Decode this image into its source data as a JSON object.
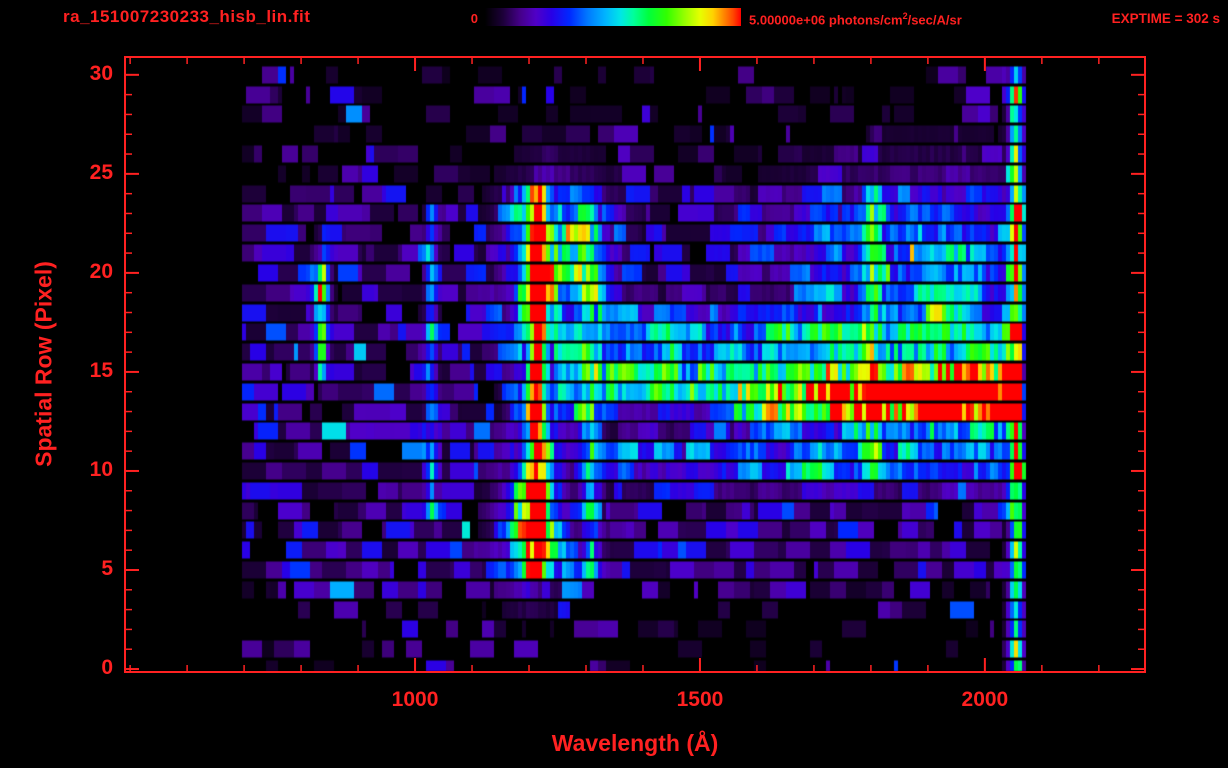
{
  "header": {
    "title": "ra_151007230233_hisb_lin.fit",
    "colorbar": {
      "min_label": "0",
      "max_prefix": "5.00000e+06 photons/cm",
      "max_sup": "2",
      "max_suffix": "/sec/A/sr"
    },
    "exptime": "EXPTIME = 302 s"
  },
  "colors": {
    "axis": "#ff2121",
    "text": "#ff2121",
    "background": "#000000"
  },
  "chart_data": {
    "type": "heatmap",
    "title": "ra_151007230233_hisb_lin.fit",
    "xlabel": "Wavelength (Å)",
    "ylabel": "Spatial Row (Pixel)",
    "x_range": [
      491,
      2281
    ],
    "y_range": [
      -0.15,
      30.9
    ],
    "x_ticks_major": [
      1000,
      1500,
      2000
    ],
    "x_tick_minor_step": 100,
    "y_ticks_major": [
      0,
      5,
      10,
      15,
      20,
      25,
      30
    ],
    "y_tick_minor_step": 1,
    "rows": 31,
    "data_lambda_range": [
      697,
      2068
    ],
    "exposure_time_s": 302,
    "colorbar": {
      "min": 0,
      "max": 5000000,
      "units": "photons/cm^2/sec/A/sr"
    },
    "colormap": [
      [
        0.0,
        "#000000"
      ],
      [
        0.07,
        "#1c0038"
      ],
      [
        0.14,
        "#46008c"
      ],
      [
        0.2,
        "#5000c8"
      ],
      [
        0.26,
        "#2800e6"
      ],
      [
        0.33,
        "#0028ff"
      ],
      [
        0.4,
        "#0078ff"
      ],
      [
        0.47,
        "#00b4ff"
      ],
      [
        0.53,
        "#00e6e6"
      ],
      [
        0.58,
        "#00ff9b"
      ],
      [
        0.64,
        "#00ff3c"
      ],
      [
        0.71,
        "#32ff00"
      ],
      [
        0.78,
        "#96ff00"
      ],
      [
        0.84,
        "#e6ff00"
      ],
      [
        0.89,
        "#ffd200"
      ],
      [
        0.93,
        "#ff8c00"
      ],
      [
        0.97,
        "#ff4600"
      ],
      [
        1.0,
        "#ff0000"
      ]
    ],
    "noise": {
      "seed": 20151007,
      "row_fill": [
        0.22,
        0.22,
        0.25,
        0.3,
        0.55,
        0.88,
        0.88,
        0.88,
        0.88,
        0.88,
        0.88,
        0.88,
        0.88,
        0.88,
        0.88,
        0.88,
        0.88,
        0.88,
        0.88,
        0.88,
        0.88,
        0.88,
        0.88,
        0.88,
        0.8,
        0.5,
        0.45,
        0.45,
        0.45,
        0.4,
        0.35
      ],
      "row_amp": [
        0.3,
        0.3,
        0.3,
        0.32,
        0.42,
        0.55,
        0.55,
        0.55,
        0.55,
        0.55,
        0.55,
        0.55,
        0.55,
        0.55,
        0.55,
        0.55,
        0.55,
        0.55,
        0.55,
        0.55,
        0.55,
        0.55,
        0.55,
        0.55,
        0.5,
        0.4,
        0.38,
        0.38,
        0.38,
        0.34,
        0.3
      ]
    },
    "features": [
      {
        "type": "vline",
        "lambda": 1212,
        "sigma": 10,
        "row_min": 5,
        "row_max": 24,
        "amp": 0.8
      },
      {
        "type": "vline",
        "lambda": 1212,
        "sigma": 30,
        "row_min": 5,
        "row_max": 24,
        "amp": 0.25
      },
      {
        "type": "vline",
        "lambda": 1026,
        "sigma": 6,
        "row_min": 8,
        "row_max": 23,
        "amp": 0.28
      },
      {
        "type": "vline",
        "lambda": 833,
        "sigma": 7,
        "row_min": 15,
        "row_max": 20,
        "amp": 0.55
      },
      {
        "type": "vline",
        "lambda": 1306,
        "sigma": 12,
        "row_min": 5,
        "row_max": 23,
        "amp": 0.3
      },
      {
        "type": "vline",
        "lambda": 1800,
        "sigma": 11,
        "row_min": 10,
        "row_max": 24,
        "amp": 0.28
      },
      {
        "type": "vline",
        "lambda": 2052,
        "sigma": 8,
        "row_min": 0,
        "row_max": 30,
        "amp": 0.6
      },
      {
        "type": "hband",
        "row": 14.4,
        "sigma": 0.8,
        "l_min": 1240,
        "l_max": 2062,
        "amp_start": 0.3,
        "amp_end": 0.8
      },
      {
        "type": "hband",
        "row": 13.2,
        "sigma": 0.7,
        "l_min": 1560,
        "l_max": 2062,
        "amp_start": 0.35,
        "amp_end": 1.0
      },
      {
        "type": "hband",
        "row": 16.6,
        "sigma": 1.0,
        "l_min": 1240,
        "l_max": 2060,
        "amp_start": 0.2,
        "amp_end": 0.4
      },
      {
        "type": "hband",
        "row": 10.6,
        "sigma": 0.9,
        "l_min": 1350,
        "l_max": 2060,
        "amp_start": 0.15,
        "amp_end": 0.3
      },
      {
        "type": "blob",
        "lambda": 1250,
        "sigma_l": 55,
        "row": 21,
        "sigma_r": 2.2,
        "amp": 0.4
      },
      {
        "type": "blob",
        "lambda": 1205,
        "sigma_l": 35,
        "row": 7,
        "sigma_r": 1.8,
        "amp": 0.45
      },
      {
        "type": "blob",
        "lambda": 1900,
        "sigma_l": 150,
        "row": 21,
        "sigma_r": 2.4,
        "amp": 0.3
      },
      {
        "type": "blob",
        "lambda": 833,
        "sigma_l": 10,
        "row": 19.5,
        "sigma_r": 1.2,
        "amp": 0.3
      }
    ]
  }
}
